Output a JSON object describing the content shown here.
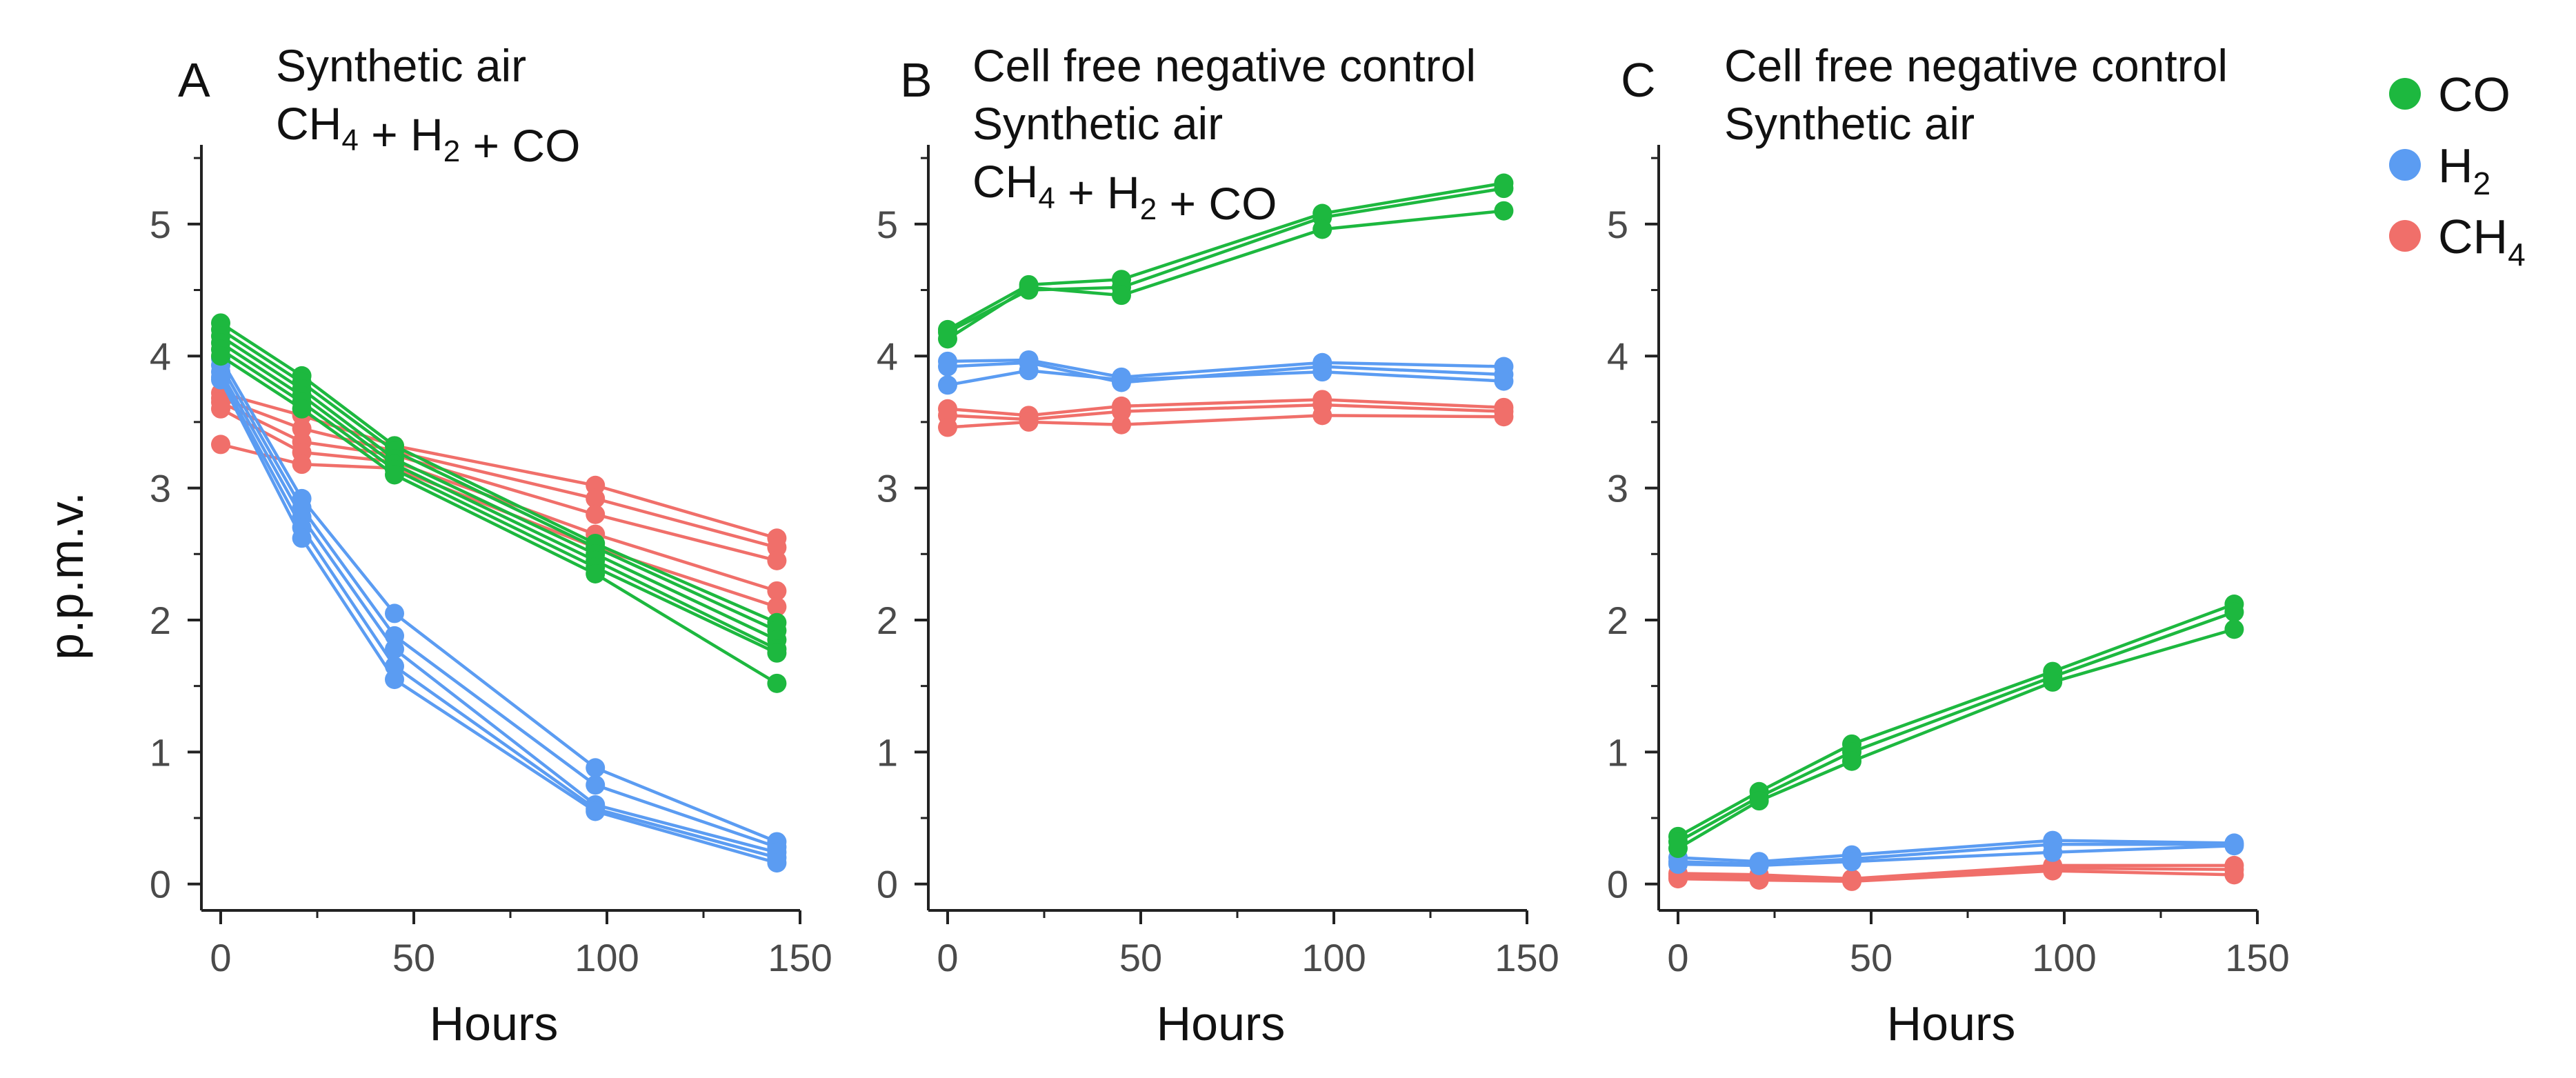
{
  "colors": {
    "CO": "#1db83f",
    "H2": "#5b9cf2",
    "CH4": "#f06f6a"
  },
  "ylabel": "p.p.m.v.",
  "legend": [
    {
      "key": "CO",
      "name": "CO",
      "base": "CO",
      "sub": ""
    },
    {
      "key": "H2",
      "name": "H2",
      "base": "H",
      "sub": "2"
    },
    {
      "key": "CH4",
      "name": "CH4",
      "base": "CH",
      "sub": "4"
    }
  ],
  "chart_data": [
    {
      "type": "line",
      "panel": "A",
      "title_lines": [
        "Synthetic air",
        "CH4 + H2 + CO"
      ],
      "xlabel": "Hours",
      "ylabel": "p.p.m.v.",
      "x": [
        0,
        21,
        45,
        97,
        144
      ],
      "xticks": [
        0,
        50,
        100,
        150
      ],
      "yticks": [
        0,
        1,
        2,
        3,
        4,
        5
      ],
      "xlim": [
        -5,
        150
      ],
      "ylim": [
        -0.2,
        5.6
      ],
      "series": [
        {
          "name": "CO",
          "group": "CO",
          "values": [
            4.25,
            3.85,
            3.32,
            2.58,
            1.98
          ]
        },
        {
          "name": "CO",
          "group": "CO",
          "values": [
            4.2,
            3.8,
            3.28,
            2.55,
            1.92
          ]
        },
        {
          "name": "CO",
          "group": "CO",
          "values": [
            4.15,
            3.75,
            3.22,
            2.5,
            1.85
          ]
        },
        {
          "name": "CO",
          "group": "CO",
          "values": [
            4.1,
            3.7,
            3.18,
            2.45,
            1.78
          ]
        },
        {
          "name": "CO",
          "group": "CO",
          "values": [
            4.05,
            3.65,
            3.14,
            2.4,
            1.75
          ]
        },
        {
          "name": "CO",
          "group": "CO",
          "values": [
            4.0,
            3.6,
            3.1,
            2.35,
            1.52
          ]
        },
        {
          "name": "H2",
          "group": "H2",
          "values": [
            3.98,
            2.92,
            2.05,
            0.88,
            0.32
          ]
        },
        {
          "name": "H2",
          "group": "H2",
          "values": [
            3.93,
            2.85,
            1.88,
            0.75,
            0.28
          ]
        },
        {
          "name": "H2",
          "group": "H2",
          "values": [
            3.88,
            2.78,
            1.78,
            0.6,
            0.24
          ]
        },
        {
          "name": "H2",
          "group": "H2",
          "values": [
            3.84,
            2.7,
            1.65,
            0.57,
            0.2
          ]
        },
        {
          "name": "H2",
          "group": "H2",
          "values": [
            3.82,
            2.62,
            1.55,
            0.55,
            0.16
          ]
        },
        {
          "name": "CH4",
          "group": "CH4",
          "values": [
            3.72,
            3.55,
            3.32,
            3.02,
            2.62
          ]
        },
        {
          "name": "CH4",
          "group": "CH4",
          "values": [
            3.68,
            3.45,
            3.28,
            2.92,
            2.55
          ]
        },
        {
          "name": "CH4",
          "group": "CH4",
          "values": [
            3.65,
            3.35,
            3.25,
            2.8,
            2.45
          ]
        },
        {
          "name": "CH4",
          "group": "CH4",
          "values": [
            3.6,
            3.27,
            3.2,
            2.65,
            2.22
          ]
        },
        {
          "name": "CH4",
          "group": "CH4",
          "values": [
            3.33,
            3.18,
            3.15,
            2.55,
            2.1
          ]
        }
      ]
    },
    {
      "type": "line",
      "panel": "B",
      "title_lines": [
        "Cell free negative control",
        "Synthetic air",
        "CH4 + H2 + CO"
      ],
      "xlabel": "Hours",
      "x": [
        0,
        21,
        45,
        97,
        144
      ],
      "xticks": [
        0,
        50,
        100,
        150
      ],
      "yticks": [
        0,
        1,
        2,
        3,
        4,
        5
      ],
      "xlim": [
        -5,
        150
      ],
      "ylim": [
        -0.2,
        5.6
      ],
      "series": [
        {
          "name": "CO",
          "group": "CO",
          "values": [
            4.2,
            4.54,
            4.58,
            5.08,
            5.31
          ]
        },
        {
          "name": "CO",
          "group": "CO",
          "values": [
            4.18,
            4.5,
            4.52,
            5.05,
            5.27
          ]
        },
        {
          "name": "CO",
          "group": "CO",
          "values": [
            4.13,
            4.52,
            4.46,
            4.96,
            5.1
          ]
        },
        {
          "name": "H2",
          "group": "H2",
          "values": [
            3.96,
            3.97,
            3.84,
            3.95,
            3.92
          ]
        },
        {
          "name": "H2",
          "group": "H2",
          "values": [
            3.92,
            3.95,
            3.8,
            3.92,
            3.86
          ]
        },
        {
          "name": "H2",
          "group": "H2",
          "values": [
            3.78,
            3.89,
            3.82,
            3.88,
            3.81
          ]
        },
        {
          "name": "CH4",
          "group": "CH4",
          "values": [
            3.6,
            3.55,
            3.62,
            3.67,
            3.61
          ]
        },
        {
          "name": "CH4",
          "group": "CH4",
          "values": [
            3.55,
            3.52,
            3.58,
            3.63,
            3.58
          ]
        },
        {
          "name": "CH4",
          "group": "CH4",
          "values": [
            3.46,
            3.5,
            3.48,
            3.55,
            3.54
          ]
        }
      ]
    },
    {
      "type": "line",
      "panel": "C",
      "title_lines": [
        "Cell free negative control",
        "Synthetic air"
      ],
      "xlabel": "Hours",
      "x": [
        0,
        21,
        45,
        97,
        144
      ],
      "xticks": [
        0,
        50,
        100,
        150
      ],
      "yticks": [
        0,
        1,
        2,
        3,
        4,
        5
      ],
      "xlim": [
        -5,
        150
      ],
      "ylim": [
        -0.2,
        5.6
      ],
      "series": [
        {
          "name": "CO",
          "group": "CO",
          "values": [
            0.36,
            0.7,
            1.06,
            1.61,
            2.12
          ]
        },
        {
          "name": "CO",
          "group": "CO",
          "values": [
            0.32,
            0.66,
            1.0,
            1.57,
            2.06
          ]
        },
        {
          "name": "CO",
          "group": "CO",
          "values": [
            0.27,
            0.63,
            0.93,
            1.53,
            1.93
          ]
        },
        {
          "name": "H2",
          "group": "H2",
          "values": [
            0.2,
            0.17,
            0.22,
            0.33,
            0.31
          ]
        },
        {
          "name": "H2",
          "group": "H2",
          "values": [
            0.17,
            0.15,
            0.19,
            0.3,
            0.3
          ]
        },
        {
          "name": "H2",
          "group": "H2",
          "values": [
            0.15,
            0.14,
            0.17,
            0.24,
            0.29
          ]
        },
        {
          "name": "CH4",
          "group": "CH4",
          "values": [
            0.08,
            0.07,
            0.04,
            0.14,
            0.14
          ]
        },
        {
          "name": "CH4",
          "group": "CH4",
          "values": [
            0.06,
            0.05,
            0.03,
            0.12,
            0.11
          ]
        },
        {
          "name": "CH4",
          "group": "CH4",
          "values": [
            0.04,
            0.03,
            0.02,
            0.1,
            0.07
          ]
        }
      ]
    }
  ]
}
